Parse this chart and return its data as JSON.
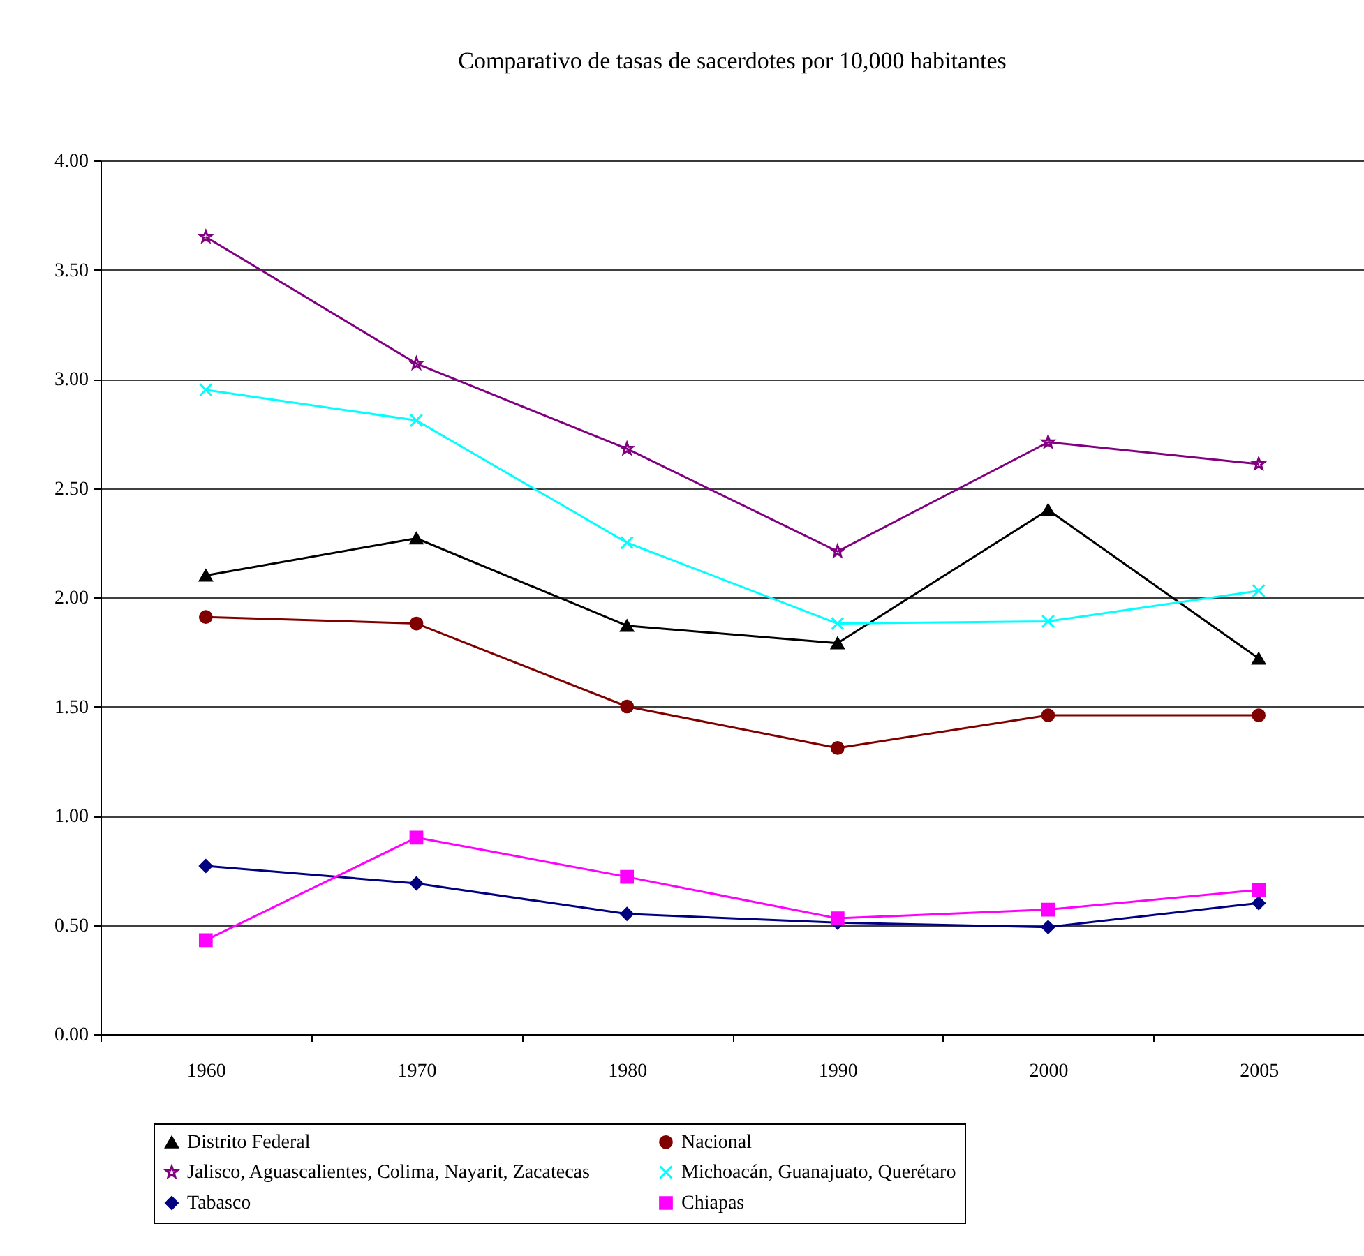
{
  "chart_data": {
    "type": "line",
    "title": "Comparativo de tasas de sacerdotes por 10,000 habitantes",
    "categories": [
      "1960",
      "1970",
      "1980",
      "1990",
      "2000",
      "2005"
    ],
    "series": [
      {
        "name": "Distrito Federal",
        "color": "#000000",
        "marker": "triangle",
        "values": [
          2.1,
          2.27,
          1.87,
          1.79,
          2.4,
          1.72
        ]
      },
      {
        "name": "Nacional",
        "color": "#800000",
        "marker": "circle",
        "values": [
          1.91,
          1.88,
          1.5,
          1.31,
          1.46,
          1.46
        ]
      },
      {
        "name": "Jalisco, Aguascalientes, Colima, Nayarit, Zacatecas",
        "color": "#800080",
        "marker": "star",
        "values": [
          3.65,
          3.07,
          2.68,
          2.21,
          2.71,
          2.61
        ]
      },
      {
        "name": "Michoacán, Guanajuato, Querétaro",
        "color": "#00ffff",
        "marker": "cross",
        "values": [
          2.95,
          2.81,
          2.25,
          1.88,
          1.89,
          2.03
        ]
      },
      {
        "name": "Tabasco",
        "color": "#000080",
        "marker": "diamond",
        "values": [
          0.77,
          0.69,
          0.55,
          0.51,
          0.49,
          0.6
        ]
      },
      {
        "name": "Chiapas",
        "color": "#ff00ff",
        "marker": "square",
        "values": [
          0.43,
          0.9,
          0.72,
          0.53,
          0.57,
          0.66
        ]
      }
    ],
    "ylim": [
      0,
      4
    ],
    "yticks": [
      {
        "value": 0,
        "label": "0.00"
      },
      {
        "value": 0.5,
        "label": "0.50"
      },
      {
        "value": 1,
        "label": "1.00"
      },
      {
        "value": 1.5,
        "label": "1.50"
      },
      {
        "value": 2,
        "label": "2.00"
      },
      {
        "value": 2.5,
        "label": "2.50"
      },
      {
        "value": 3,
        "label": "3.00"
      },
      {
        "value": 3.5,
        "label": "3.50"
      },
      {
        "value": 4,
        "label": "4.00"
      }
    ],
    "grid": "y",
    "legend": "bottom"
  }
}
